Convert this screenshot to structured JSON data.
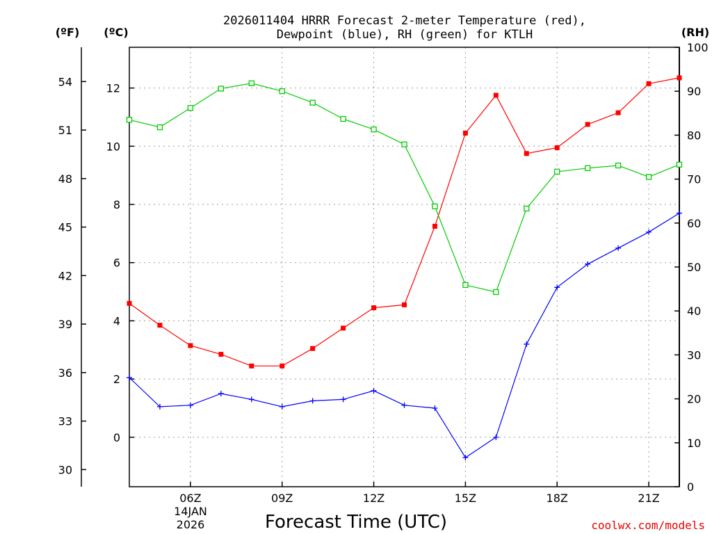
{
  "chart_data": {
    "type": "line",
    "title": [
      "2026011404 HRRR Forecast 2-meter Temperature (red),",
      "Dewpoint (blue), RH (green) for KTLH"
    ],
    "xlabel": "Forecast Time (UTC)",
    "date_label": [
      "14JAN",
      "2026"
    ],
    "credit": "coolwx.com/models",
    "units": {
      "fahrenheit": "(ºF)",
      "celsius": "(ºC)",
      "rh": "(RH)"
    },
    "x": [
      4,
      5,
      6,
      7,
      8,
      9,
      10,
      11,
      12,
      13,
      14,
      15,
      16,
      17,
      18,
      19,
      20,
      21,
      22
    ],
    "xlim": [
      4,
      22
    ],
    "x_ticks": [
      {
        "x": 6,
        "label": "06Z"
      },
      {
        "x": 9,
        "label": "09Z"
      },
      {
        "x": 12,
        "label": "12Z"
      },
      {
        "x": 15,
        "label": "15Z"
      },
      {
        "x": 18,
        "label": "18Z"
      },
      {
        "x": 21,
        "label": "21Z"
      }
    ],
    "celsius_axis": {
      "ylim": [
        -1.7,
        13.4
      ],
      "ticks": [
        "0",
        "2",
        "4",
        "6",
        "8",
        "10",
        "12"
      ]
    },
    "fahrenheit_axis": {
      "ylim": [
        28.94,
        56.12
      ],
      "ticks": [
        "30",
        "33",
        "36",
        "39",
        "42",
        "45",
        "48",
        "51",
        "54"
      ]
    },
    "rh_axis": {
      "ylim": [
        0,
        100
      ],
      "ticks": [
        "0",
        "10",
        "20",
        "30",
        "40",
        "50",
        "60",
        "70",
        "80",
        "90",
        "100"
      ]
    },
    "series": [
      {
        "name": "Temperature",
        "color": "#ff0000",
        "axis": "celsius",
        "marker": "filled-square",
        "values": [
          4.6,
          3.85,
          3.15,
          2.85,
          2.45,
          2.45,
          3.05,
          3.75,
          4.45,
          4.55,
          7.25,
          10.45,
          11.75,
          9.75,
          9.95,
          10.75,
          11.15,
          12.15,
          12.35
        ]
      },
      {
        "name": "Dewpoint",
        "color": "#0000ff",
        "axis": "celsius",
        "marker": "plus",
        "values": [
          2.05,
          1.05,
          1.1,
          1.5,
          1.3,
          1.05,
          1.25,
          1.3,
          1.6,
          1.1,
          1.0,
          -0.7,
          0.0,
          3.2,
          5.15,
          5.95,
          6.5,
          7.05,
          7.7
        ]
      },
      {
        "name": "RH",
        "color": "#00cc00",
        "axis": "rh",
        "marker": "open-square",
        "values": [
          83.5,
          81.8,
          86.2,
          90.6,
          91.8,
          90.0,
          87.4,
          83.7,
          81.3,
          77.9,
          63.8,
          45.9,
          44.3,
          63.3,
          71.7,
          72.5,
          73.1,
          70.5,
          73.3
        ]
      }
    ]
  }
}
